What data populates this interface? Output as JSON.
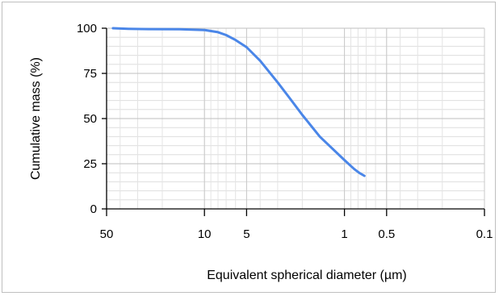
{
  "chart_data": {
    "type": "line",
    "xlabel": "Equivalent spherical diameter (µm)",
    "ylabel": "Cumulative mass (%)",
    "x_scale": "log",
    "x_reversed": true,
    "xlim": [
      50,
      0.1
    ],
    "ylim": [
      0,
      100
    ],
    "x_ticks": [
      {
        "value": 50,
        "label": "50"
      },
      {
        "value": 10,
        "label": "10"
      },
      {
        "value": 5,
        "label": "5"
      },
      {
        "value": 1,
        "label": "1"
      },
      {
        "value": 0.5,
        "label": "0.5"
      },
      {
        "value": 0.1,
        "label": "0.1"
      }
    ],
    "y_ticks": [
      {
        "value": 0,
        "label": "0"
      },
      {
        "value": 25,
        "label": "25"
      },
      {
        "value": 50,
        "label": "50"
      },
      {
        "value": 75,
        "label": "75"
      },
      {
        "value": 100,
        "label": "100"
      }
    ],
    "grid": true,
    "series": [
      {
        "color": "#4a86e8",
        "points": [
          {
            "x": 45,
            "y": 100
          },
          {
            "x": 35,
            "y": 99.7
          },
          {
            "x": 25,
            "y": 99.5
          },
          {
            "x": 15,
            "y": 99.4
          },
          {
            "x": 10,
            "y": 99.0
          },
          {
            "x": 8,
            "y": 97.8
          },
          {
            "x": 7,
            "y": 96.2
          },
          {
            "x": 6,
            "y": 93.5
          },
          {
            "x": 5,
            "y": 89.5
          },
          {
            "x": 4,
            "y": 82
          },
          {
            "x": 3,
            "y": 70
          },
          {
            "x": 2.5,
            "y": 62
          },
          {
            "x": 2,
            "y": 52
          },
          {
            "x": 1.5,
            "y": 40
          },
          {
            "x": 1,
            "y": 27
          },
          {
            "x": 0.85,
            "y": 22
          },
          {
            "x": 0.78,
            "y": 19.8
          },
          {
            "x": 0.72,
            "y": 18.3
          }
        ]
      }
    ]
  }
}
